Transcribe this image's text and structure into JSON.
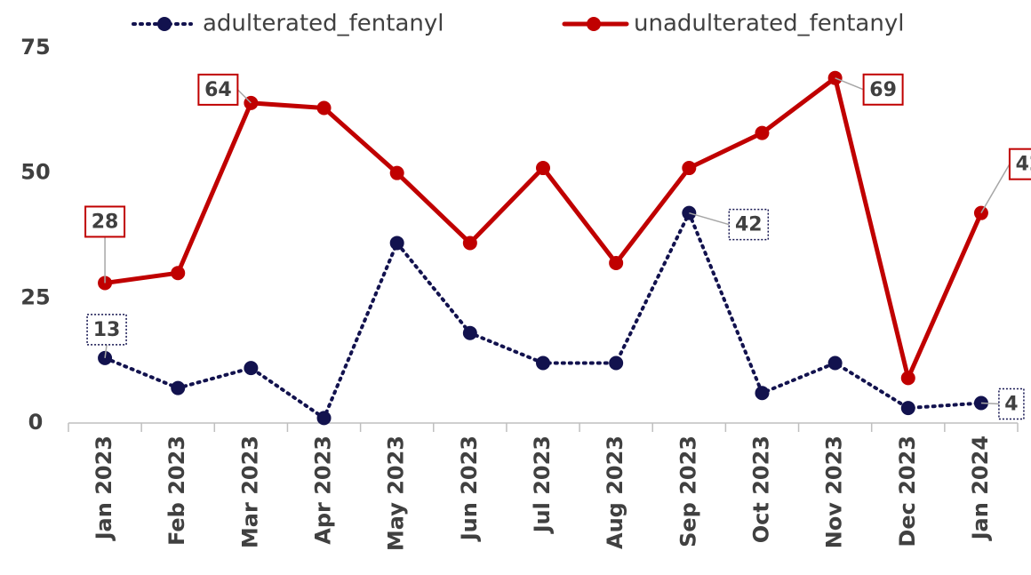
{
  "chart_data": {
    "type": "line",
    "categories": [
      "Jan 2023",
      "Feb 2023",
      "Mar 2023",
      "Apr 2023",
      "May 2023",
      "Jun 2023",
      "Jul 2023",
      "Aug 2023",
      "Sep 2023",
      "Oct 2023",
      "Nov 2023",
      "Dec 2023",
      "Jan 2024"
    ],
    "series": [
      {
        "name": "adulterated_fentanyl",
        "color": "#12124e",
        "dash": "dotted",
        "values": [
          13,
          7,
          11,
          1,
          36,
          18,
          12,
          12,
          42,
          6,
          12,
          3,
          4
        ],
        "data_labels": [
          0,
          8,
          12
        ]
      },
      {
        "name": "unadulterated_fentanyl",
        "color": "#c00000",
        "dash": "solid",
        "values": [
          28,
          30,
          64,
          63,
          50,
          36,
          51,
          32,
          51,
          58,
          69,
          9,
          42
        ],
        "data_labels": [
          0,
          2,
          10,
          12
        ]
      }
    ],
    "ylim": [
      0,
      75
    ],
    "yticks": [
      0,
      25,
      50,
      75
    ],
    "grid": false,
    "legend": "top"
  }
}
